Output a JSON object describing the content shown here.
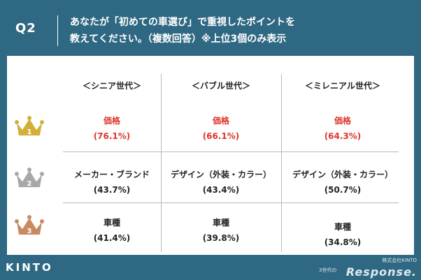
{
  "header": {
    "q_label": "Q2",
    "question_line1": "あなたが「初めての車選び」で重視したポイントを",
    "question_line2": "教えてください。（複数回答）※上位3個のみ表示"
  },
  "table": {
    "columns": [
      "＜シニア世代＞",
      "＜バブル世代＞",
      "＜ミレニアル世代＞"
    ],
    "rows": [
      {
        "rank": 1,
        "crown_color": "#d4af37",
        "cells": [
          {
            "label": "価格",
            "pct": "(76.1%)"
          },
          {
            "label": "価格",
            "pct": "(66.1%)"
          },
          {
            "label": "価格",
            "pct": "(64.3%)"
          }
        ]
      },
      {
        "rank": 2,
        "crown_color": "#a8a8a8",
        "cells": [
          {
            "label": "メーカー・ブランド",
            "pct": "(43.7%)"
          },
          {
            "label": "デザイン（外装・カラー）",
            "pct": "(43.4%)"
          },
          {
            "label": "デザイン（外装・カラー）",
            "pct": "(50.7%)"
          }
        ]
      },
      {
        "rank": 3,
        "crown_color": "#c98a62",
        "cells": [
          {
            "label": "車種",
            "pct": "(41.4%)"
          },
          {
            "label": "車種",
            "pct": "(39.8%)"
          },
          {
            "label": "車種",
            "pct": "(34.8%)"
          }
        ]
      }
    ]
  },
  "footer": {
    "logo": "KINTO",
    "company": "株式会社KINTO",
    "series": "3世代の",
    "brand": "Response."
  },
  "colors": {
    "background": "#2f6882",
    "highlight": "#e0352b"
  }
}
